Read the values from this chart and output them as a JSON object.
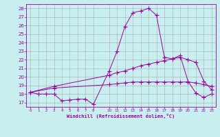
{
  "xlabel": "Windchill (Refroidissement éolien,°C)",
  "bg_color": "#c8eef0",
  "line_color": "#990099",
  "grid_color": "#aaaaaa",
  "xlim": [
    -0.5,
    23.5
  ],
  "ylim": [
    16.5,
    28.5
  ],
  "yticks": [
    17,
    18,
    19,
    20,
    21,
    22,
    23,
    24,
    25,
    26,
    27,
    28
  ],
  "xticks": [
    0,
    1,
    2,
    3,
    4,
    5,
    6,
    7,
    8,
    10,
    11,
    12,
    13,
    14,
    15,
    16,
    17,
    18,
    19,
    20,
    21,
    22,
    23
  ],
  "curve1_x": [
    0,
    1,
    2,
    3,
    4,
    5,
    6,
    7,
    8,
    10,
    11,
    12,
    13,
    14,
    15,
    16,
    17,
    18,
    19,
    20,
    21,
    22,
    23
  ],
  "curve1_y": [
    18.2,
    18.0,
    18.0,
    18.0,
    17.2,
    17.3,
    17.4,
    17.4,
    16.8,
    20.7,
    23.0,
    25.9,
    27.5,
    27.7,
    28.0,
    27.2,
    22.3,
    22.1,
    22.5,
    19.5,
    18.1,
    17.6,
    18.0
  ],
  "curve2_x": [
    0,
    3,
    10,
    11,
    12,
    13,
    14,
    15,
    16,
    17,
    18,
    19,
    20,
    21,
    22,
    23
  ],
  "curve2_y": [
    18.2,
    18.9,
    20.2,
    20.5,
    20.7,
    21.0,
    21.3,
    21.5,
    21.7,
    21.9,
    22.1,
    22.3,
    22.0,
    21.7,
    19.5,
    18.5
  ],
  "curve3_x": [
    0,
    3,
    10,
    11,
    12,
    13,
    14,
    15,
    16,
    17,
    18,
    19,
    20,
    21,
    22,
    23
  ],
  "curve3_y": [
    18.2,
    18.7,
    19.1,
    19.2,
    19.3,
    19.4,
    19.4,
    19.4,
    19.4,
    19.4,
    19.4,
    19.4,
    19.4,
    19.3,
    19.1,
    18.9
  ]
}
